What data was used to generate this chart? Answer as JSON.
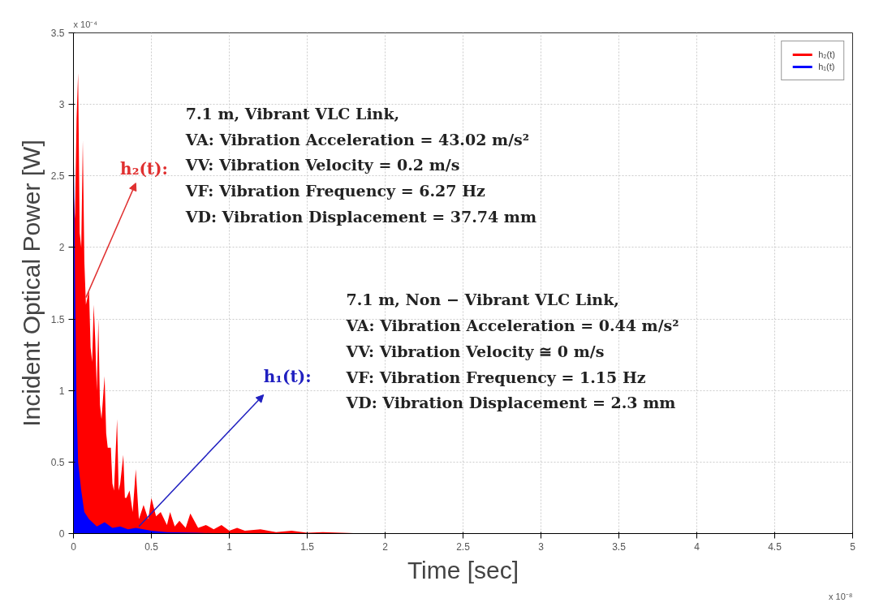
{
  "chart_data": {
    "type": "area",
    "xlabel": "Time [sec]",
    "ylabel": "Incident Optical Power [W]",
    "xlim": [
      0,
      5
    ],
    "xticks": [
      0,
      0.5,
      1,
      1.5,
      2,
      2.5,
      3,
      3.5,
      4,
      4.5,
      5
    ],
    "ylim": [
      0,
      3.5
    ],
    "yticks": [
      0,
      0.5,
      1,
      1.5,
      2,
      2.5,
      3,
      3.5
    ],
    "grid": true,
    "legend": "top right",
    "series": [
      {
        "name": "h₂(t)",
        "color": "#ff0000",
        "x": [
          0,
          0.01,
          0.02,
          0.03,
          0.04,
          0.05,
          0.06,
          0.07,
          0.08,
          0.1,
          0.11,
          0.12,
          0.13,
          0.14,
          0.15,
          0.16,
          0.17,
          0.18,
          0.2,
          0.21,
          0.22,
          0.24,
          0.25,
          0.26,
          0.28,
          0.29,
          0.3,
          0.32,
          0.33,
          0.34,
          0.36,
          0.38,
          0.4,
          0.42,
          0.45,
          0.48,
          0.5,
          0.53,
          0.56,
          0.6,
          0.62,
          0.65,
          0.68,
          0.72,
          0.75,
          0.8,
          0.85,
          0.9,
          0.95,
          1.0,
          1.05,
          1.1,
          1.2,
          1.3,
          1.4,
          1.5,
          1.6,
          1.8,
          2.0,
          5.0
        ],
        "values": [
          2.4,
          2.2,
          2.9,
          3.22,
          2.1,
          2.0,
          2.75,
          1.9,
          1.6,
          1.7,
          1.3,
          1.2,
          1.6,
          1.35,
          1.0,
          1.5,
          0.9,
          0.8,
          1.1,
          0.7,
          0.6,
          0.6,
          0.35,
          0.3,
          0.8,
          0.3,
          0.35,
          0.55,
          0.25,
          0.25,
          0.3,
          0.15,
          0.45,
          0.1,
          0.2,
          0.1,
          0.25,
          0.12,
          0.15,
          0.06,
          0.15,
          0.05,
          0.09,
          0.04,
          0.14,
          0.04,
          0.06,
          0.03,
          0.06,
          0.02,
          0.04,
          0.02,
          0.03,
          0.01,
          0.02,
          0.005,
          0.01,
          0.003,
          0,
          0
        ]
      },
      {
        "name": "h₁(t)",
        "color": "#0000ff",
        "x": [
          0,
          0.005,
          0.01,
          0.02,
          0.03,
          0.05,
          0.07,
          0.1,
          0.15,
          0.2,
          0.25,
          0.3,
          0.35,
          0.4,
          0.5,
          0.6,
          0.8,
          1.0,
          5.0
        ],
        "values": [
          2.85,
          2.4,
          1.8,
          0.9,
          0.5,
          0.3,
          0.15,
          0.1,
          0.05,
          0.08,
          0.04,
          0.05,
          0.03,
          0.04,
          0.02,
          0.01,
          0.005,
          0,
          0
        ]
      }
    ],
    "annotations": [
      "x 10⁻⁴",
      "x 10⁻⁸",
      "h₂(t):",
      "7.1 m, Vibrant VLC Link,\nVA: Vibration Acceleration = 43.02 m/s²\nVV: Vibration Velocity = 0.2 m/s\nVF: Vibration Frequency = 6.27 Hz\nVD: Vibration Displacement = 37.74 mm",
      "h₁(t):",
      "7.1 m, Non − Vibrant VLC Link,\nVA: Vibration Acceleration = 0.44 m/s²\nVV: Vibration Velocity ≅ 0 m/s\nVF: Vibration Frequency = 1.15 Hz\nVD: Vibration Displacement = 2.3 mm"
    ]
  }
}
